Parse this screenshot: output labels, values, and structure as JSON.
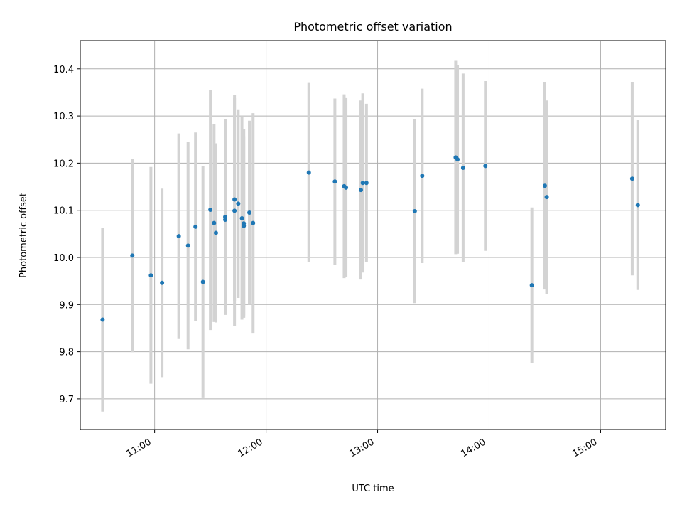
{
  "chart_data": {
    "type": "scatter",
    "title": "Photometric offset variation",
    "xlabel": "UTC time",
    "ylabel": "Photometric offset",
    "x_axis": "time",
    "xlim": [
      "10:20",
      "15:35"
    ],
    "ylim": [
      9.635,
      10.46
    ],
    "x_ticks": [
      "11:00",
      "12:00",
      "13:00",
      "14:00",
      "15:00"
    ],
    "y_ticks": [
      "9.7",
      "9.8",
      "9.9",
      "10.0",
      "10.1",
      "10.2",
      "10.3",
      "10.4"
    ],
    "grid": true,
    "marker_color": "#1f77b4",
    "errorbar_color": "#d3d3d3",
    "points": [
      {
        "x": "10:32",
        "y": 9.868,
        "err": 0.195
      },
      {
        "x": "10:48",
        "y": 10.004,
        "err": 0.205
      },
      {
        "x": "10:58",
        "y": 9.962,
        "err": 0.23
      },
      {
        "x": "11:04",
        "y": 9.946,
        "err": 0.2
      },
      {
        "x": "11:13",
        "y": 10.045,
        "err": 0.218
      },
      {
        "x": "11:18",
        "y": 10.025,
        "err": 0.22
      },
      {
        "x": "11:22",
        "y": 10.065,
        "err": 0.2
      },
      {
        "x": "11:26",
        "y": 9.948,
        "err": 0.245
      },
      {
        "x": "11:30",
        "y": 10.101,
        "err": 0.255
      },
      {
        "x": "11:32",
        "y": 10.073,
        "err": 0.21
      },
      {
        "x": "11:33",
        "y": 10.052,
        "err": 0.19
      },
      {
        "x": "11:38",
        "y": 10.086,
        "err": 0.208
      },
      {
        "x": "11:38",
        "y": 10.08,
        "err": 0.2
      },
      {
        "x": "11:43",
        "y": 10.099,
        "err": 0.245
      },
      {
        "x": "11:43",
        "y": 10.123,
        "err": 0.215
      },
      {
        "x": "11:45",
        "y": 10.114,
        "err": 0.2
      },
      {
        "x": "11:47",
        "y": 10.083,
        "err": 0.215
      },
      {
        "x": "11:48",
        "y": 10.072,
        "err": 0.2
      },
      {
        "x": "11:48",
        "y": 10.067,
        "err": 0.19
      },
      {
        "x": "11:51",
        "y": 10.095,
        "err": 0.195
      },
      {
        "x": "11:53",
        "y": 10.073,
        "err": 0.233
      },
      {
        "x": "12:23",
        "y": 10.18,
        "err": 0.19
      },
      {
        "x": "12:37",
        "y": 10.161,
        "err": 0.176
      },
      {
        "x": "12:42",
        "y": 10.151,
        "err": 0.195
      },
      {
        "x": "12:43",
        "y": 10.148,
        "err": 0.19
      },
      {
        "x": "12:51",
        "y": 10.143,
        "err": 0.19
      },
      {
        "x": "12:52",
        "y": 10.158,
        "err": 0.19
      },
      {
        "x": "12:54",
        "y": 10.158,
        "err": 0.168
      },
      {
        "x": "13:20",
        "y": 10.098,
        "err": 0.195
      },
      {
        "x": "13:24",
        "y": 10.173,
        "err": 0.185
      },
      {
        "x": "13:42",
        "y": 10.212,
        "err": 0.205
      },
      {
        "x": "13:43",
        "y": 10.208,
        "err": 0.2
      },
      {
        "x": "13:46",
        "y": 10.19,
        "err": 0.2
      },
      {
        "x": "13:58",
        "y": 10.194,
        "err": 0.18
      },
      {
        "x": "14:23",
        "y": 9.941,
        "err": 0.165
      },
      {
        "x": "14:30",
        "y": 10.152,
        "err": 0.22
      },
      {
        "x": "14:31",
        "y": 10.128,
        "err": 0.205
      },
      {
        "x": "15:17",
        "y": 10.167,
        "err": 0.205
      },
      {
        "x": "15:20",
        "y": 10.111,
        "err": 0.18
      }
    ]
  }
}
